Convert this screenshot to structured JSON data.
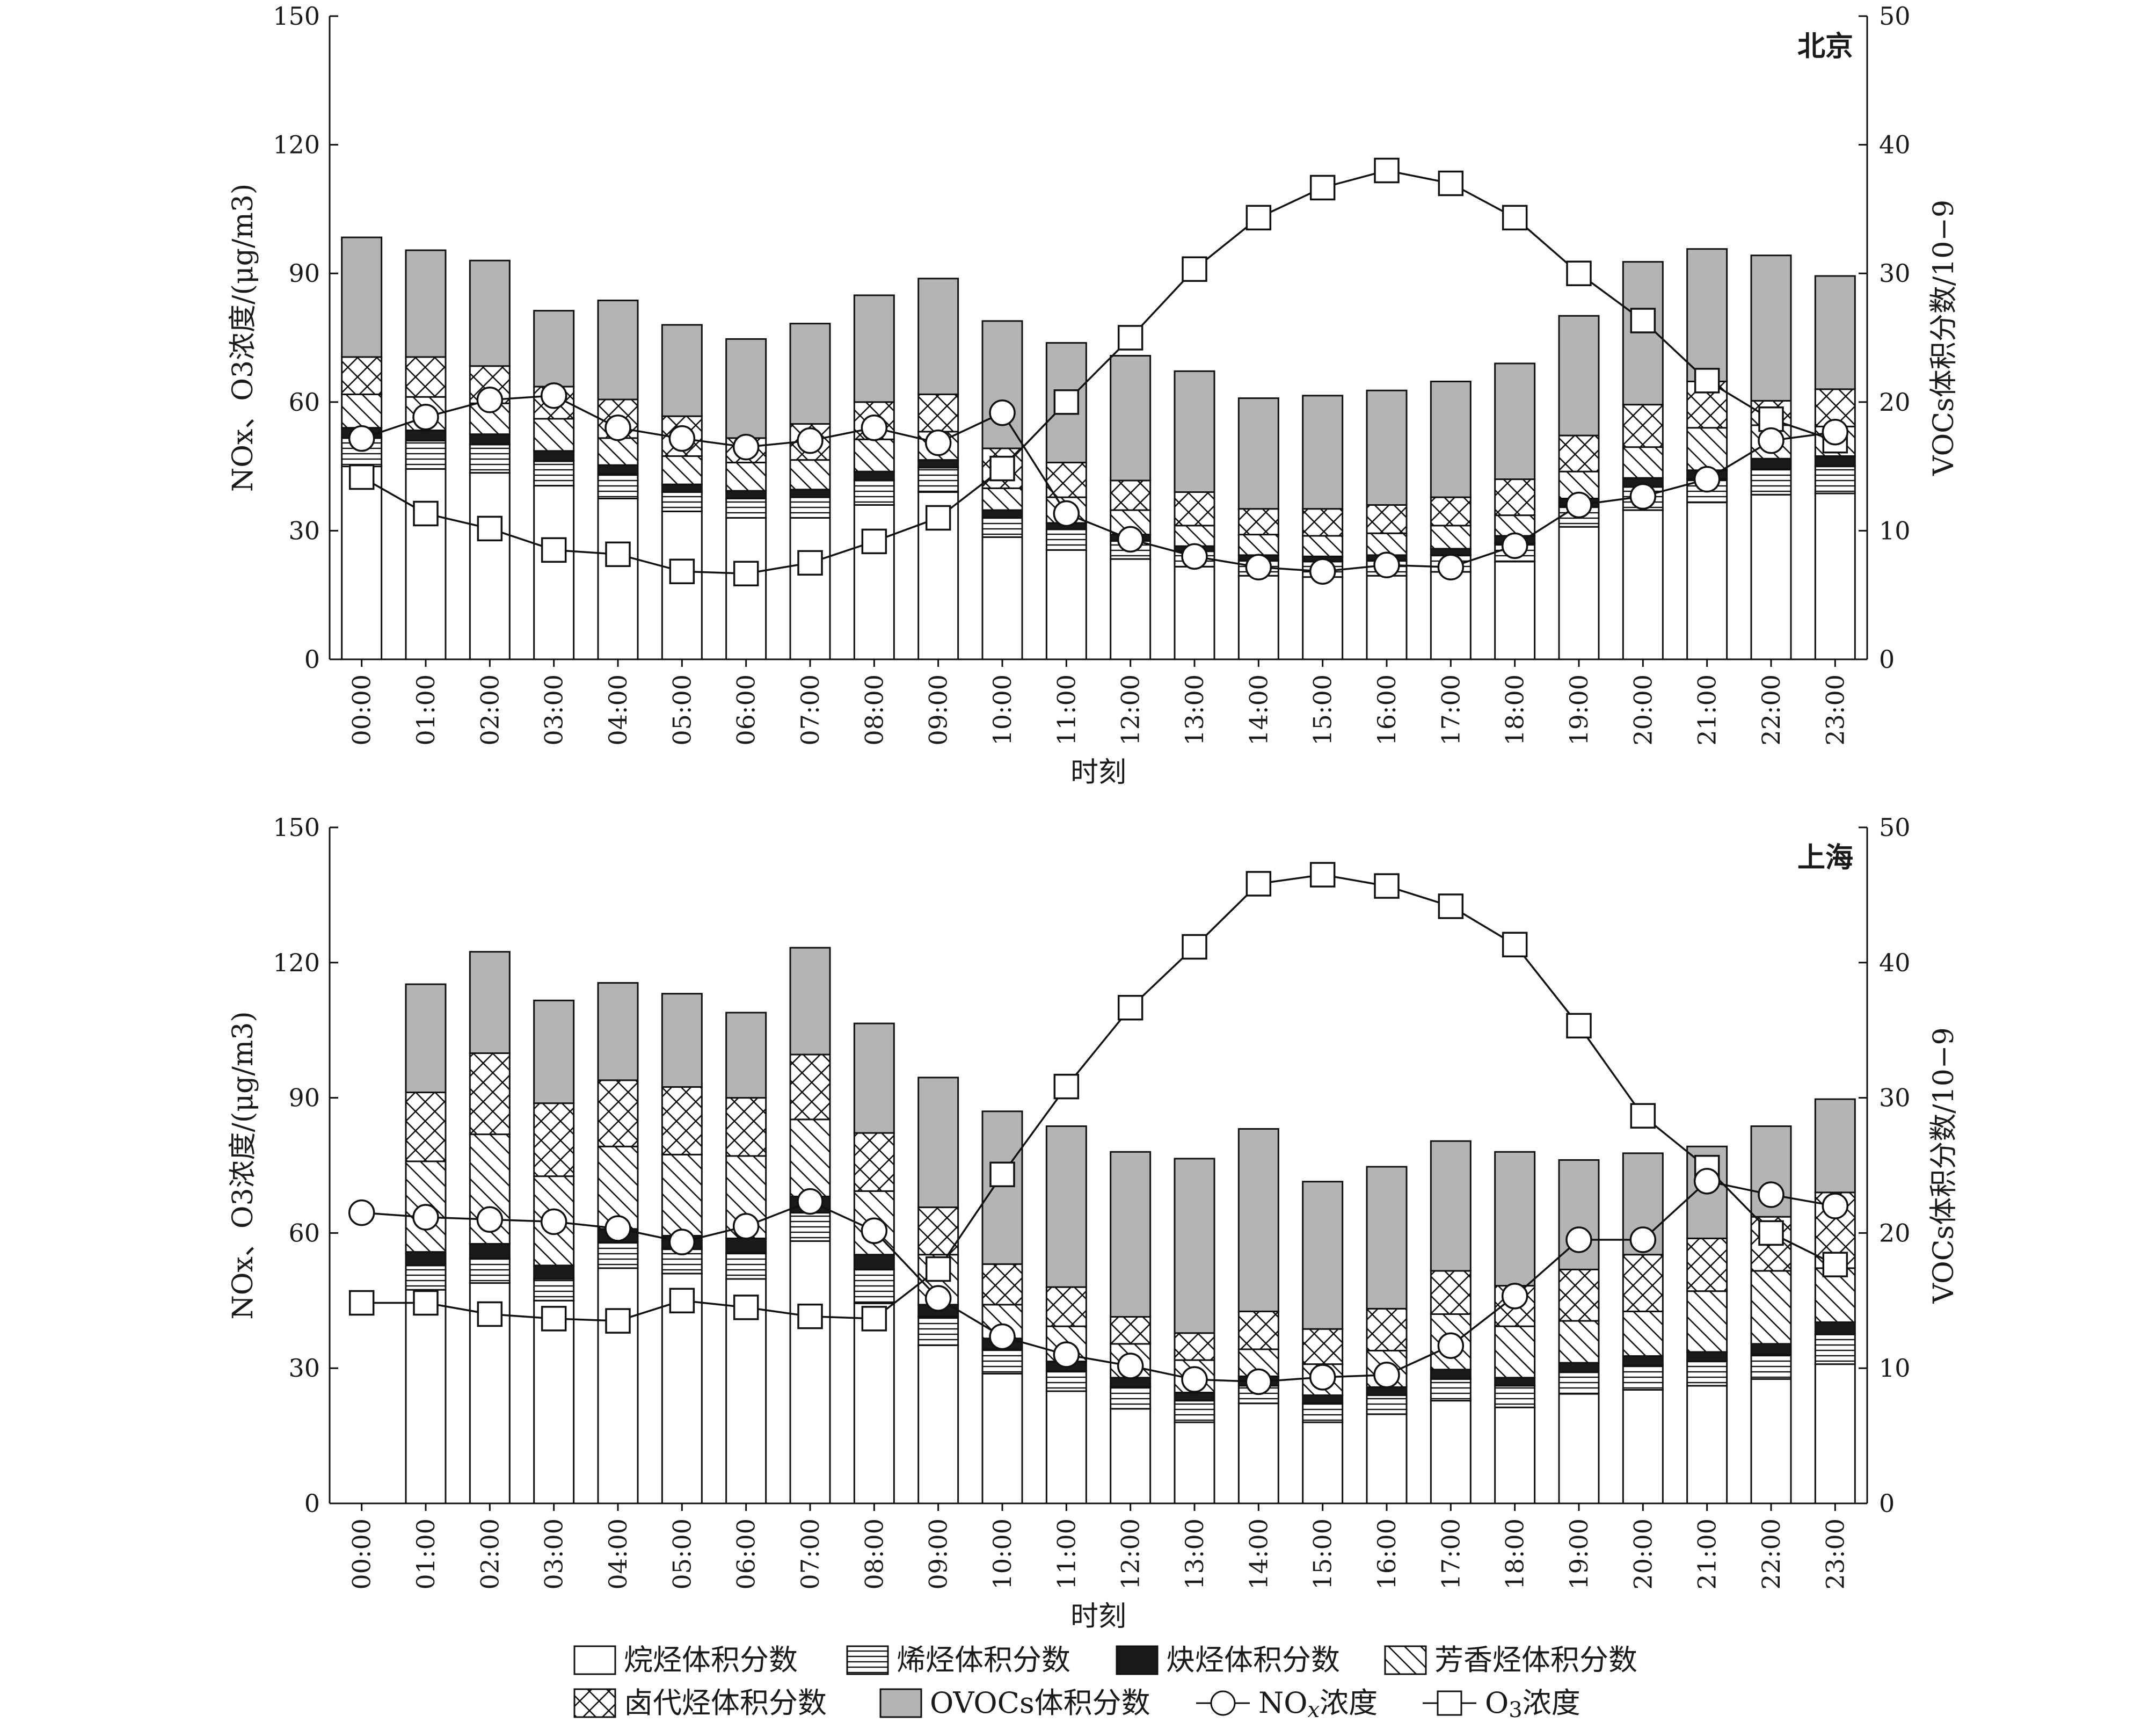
{
  "chart_data": [
    {
      "type": "bar+line",
      "panel_label": "北京",
      "categories": [
        "00:00",
        "01:00",
        "02:00",
        "03:00",
        "04:00",
        "05:00",
        "06:00",
        "07:00",
        "08:00",
        "09:00",
        "10:00",
        "11:00",
        "12:00",
        "13:00",
        "14:00",
        "15:00",
        "16:00",
        "17:00",
        "18:00",
        "19:00",
        "20:00",
        "21:00",
        "22:00",
        "23:00"
      ],
      "xlabel": "时刻",
      "ylabel_left": "NOx、O3浓度/(μg/m3)",
      "ylabel_right": "VOCs体积分数/10−9",
      "ylim_left": [
        0,
        150
      ],
      "yticks_left": [
        0,
        30,
        60,
        90,
        120,
        150
      ],
      "ylim_right": [
        0,
        50
      ],
      "yticks_right": [
        0,
        10,
        20,
        30,
        40,
        50
      ],
      "stack_series": [
        {
          "name": "烷烃体积分数",
          "values": [
            15.0,
            14.8,
            14.5,
            13.5,
            12.5,
            11.5,
            11.0,
            11.0,
            12.0,
            13.0,
            9.5,
            8.5,
            7.8,
            7.2,
            6.5,
            6.4,
            6.5,
            6.8,
            7.6,
            10.3,
            11.6,
            12.2,
            12.8,
            12.9
          ]
        },
        {
          "name": "烯烃体积分数",
          "values": [
            2.2,
            2.2,
            2.2,
            1.9,
            1.9,
            1.5,
            1.5,
            1.6,
            1.9,
            1.9,
            1.5,
            1.6,
            1.4,
            1.2,
            1.2,
            1.2,
            1.2,
            1.3,
            1.4,
            1.6,
            1.8,
            1.8,
            2.0,
            2.1
          ]
        },
        {
          "name": "炔烃体积分数",
          "values": [
            0.8,
            0.8,
            0.8,
            0.8,
            0.7,
            0.6,
            0.6,
            0.6,
            0.7,
            0.6,
            0.6,
            0.5,
            0.5,
            0.4,
            0.4,
            0.4,
            0.4,
            0.5,
            0.6,
            0.6,
            0.7,
            0.7,
            0.8,
            0.8
          ]
        },
        {
          "name": "芳香烃体积分数",
          "values": [
            2.6,
            2.6,
            2.4,
            2.5,
            2.1,
            2.2,
            2.2,
            2.3,
            2.5,
            2.2,
            1.7,
            2.0,
            1.9,
            1.6,
            1.6,
            1.6,
            1.7,
            1.8,
            1.6,
            2.1,
            2.4,
            3.3,
            2.6,
            2.3
          ]
        },
        {
          "name": "卤代烃体积分数",
          "values": [
            2.9,
            3.1,
            2.9,
            2.5,
            3.0,
            3.1,
            1.9,
            2.8,
            2.9,
            2.9,
            3.1,
            2.7,
            2.3,
            2.6,
            2.0,
            2.1,
            2.2,
            2.2,
            2.8,
            2.8,
            3.3,
            3.6,
            1.9,
            2.9
          ]
        },
        {
          "name": "OVOCs体积分数",
          "values": [
            9.3,
            8.3,
            8.2,
            5.9,
            7.7,
            7.1,
            7.7,
            7.8,
            8.3,
            9.0,
            9.9,
            9.3,
            9.7,
            9.4,
            8.6,
            8.8,
            8.9,
            9.0,
            9.0,
            9.3,
            11.1,
            10.3,
            11.3,
            8.8
          ]
        }
      ],
      "line_series": [
        {
          "name": "NOx浓度",
          "values": [
            51.5,
            56.5,
            60.5,
            61.5,
            54.0,
            51.5,
            49.5,
            51.0,
            54.0,
            50.5,
            57.5,
            34.0,
            28.0,
            24.0,
            21.5,
            20.5,
            22.0,
            21.5,
            26.5,
            36.0,
            38.0,
            42.0,
            51.0,
            53.0
          ]
        },
        {
          "name": "O3浓度",
          "values": [
            42.5,
            34.0,
            30.5,
            25.5,
            24.5,
            20.5,
            20.0,
            22.5,
            27.5,
            33.0,
            44.5,
            60.0,
            75.0,
            91.0,
            103.0,
            110.0,
            114.0,
            111.0,
            103.0,
            90.0,
            79.0,
            65.0,
            56.0,
            51.0
          ]
        }
      ]
    },
    {
      "type": "bar+line",
      "panel_label": "上海",
      "categories": [
        "00:00",
        "01:00",
        "02:00",
        "03:00",
        "04:00",
        "05:00",
        "06:00",
        "07:00",
        "08:00",
        "09:00",
        "10:00",
        "11:00",
        "12:00",
        "13:00",
        "14:00",
        "15:00",
        "16:00",
        "17:00",
        "18:00",
        "19:00",
        "20:00",
        "21:00",
        "22:00",
        "23:00"
      ],
      "xlabel": "时刻",
      "ylabel_left": "NOx、O3浓度/(μg/m3)",
      "ylabel_right": "VOCs体积分数/10−9",
      "ylim_left": [
        0,
        150
      ],
      "yticks_left": [
        0,
        30,
        60,
        90,
        120,
        150
      ],
      "ylim_right": [
        0,
        50
      ],
      "yticks_right": [
        0,
        10,
        20,
        30,
        40,
        50
      ],
      "stack_series": [
        {
          "name": "烷烃体积分数",
          "values": [
            0,
            15.8,
            16.3,
            15.0,
            17.4,
            17.0,
            16.6,
            19.4,
            14.8,
            11.7,
            9.6,
            8.3,
            7.0,
            6.0,
            7.4,
            6.0,
            6.6,
            7.6,
            7.1,
            8.1,
            8.4,
            8.7,
            9.2,
            10.3
          ]
        },
        {
          "name": "烯烃体积分数",
          "values": [
            0,
            1.8,
            1.8,
            1.6,
            1.9,
            1.8,
            1.9,
            2.1,
            2.5,
            2.1,
            1.8,
            1.5,
            1.6,
            1.6,
            1.3,
            1.4,
            1.4,
            1.6,
            1.6,
            1.6,
            1.8,
            1.8,
            1.8,
            2.2
          ]
        },
        {
          "name": "炔烃体积分数",
          "values": [
            0,
            1.0,
            1.1,
            1.0,
            1.0,
            1.0,
            1.1,
            1.2,
            1.1,
            0.9,
            0.8,
            0.7,
            0.7,
            0.6,
            0.7,
            0.6,
            0.6,
            0.7,
            0.6,
            0.7,
            0.7,
            0.7,
            0.8,
            0.9
          ]
        },
        {
          "name": "芳香烃体积分数",
          "values": [
            0,
            6.7,
            8.1,
            6.6,
            6.1,
            6.0,
            6.1,
            5.7,
            4.7,
            3.7,
            2.5,
            2.6,
            2.5,
            2.4,
            2.0,
            2.3,
            2.7,
            4.1,
            3.8,
            3.1,
            3.3,
            4.5,
            5.4,
            4.0
          ]
        },
        {
          "name": "卤代烃体积分数",
          "values": [
            0,
            5.1,
            6.0,
            5.4,
            4.9,
            5.0,
            4.3,
            4.8,
            4.3,
            3.5,
            3.0,
            2.9,
            2.0,
            2.0,
            2.8,
            2.6,
            3.1,
            3.2,
            3.0,
            3.8,
            4.2,
            3.9,
            4.0,
            5.6
          ]
        },
        {
          "name": "OVOCs体积分数",
          "values": [
            0,
            8.0,
            7.5,
            7.6,
            7.2,
            6.9,
            6.3,
            7.9,
            8.1,
            9.6,
            11.3,
            11.9,
            12.2,
            12.9,
            13.5,
            10.9,
            10.5,
            9.6,
            9.9,
            8.1,
            7.5,
            6.8,
            6.7,
            6.9
          ]
        }
      ],
      "line_series": [
        {
          "name": "NOx浓度",
          "values": [
            64.5,
            63.5,
            63.0,
            62.5,
            61.0,
            58.0,
            61.5,
            67.0,
            60.5,
            45.5,
            37.0,
            33.0,
            30.5,
            27.5,
            27.0,
            28.0,
            28.5,
            35.0,
            46.0,
            58.5,
            58.5,
            71.5,
            68.5,
            66.0
          ]
        },
        {
          "name": "O3浓度",
          "values": [
            44.5,
            44.5,
            42.0,
            41.0,
            40.5,
            45.0,
            43.5,
            41.5,
            41.0,
            52.0,
            73.0,
            92.5,
            110.0,
            123.5,
            137.5,
            139.5,
            137.0,
            132.5,
            124.0,
            106.0,
            86.0,
            74.5,
            60.0,
            53.0
          ]
        }
      ]
    }
  ],
  "legend": {
    "items": [
      "烷烃体积分数",
      "烯烃体积分数",
      "炔烃体积分数",
      "芳香烃体积分数",
      "卤代烃体积分数",
      "OVOCs体积分数",
      "NOx浓度",
      "O3浓度"
    ]
  }
}
